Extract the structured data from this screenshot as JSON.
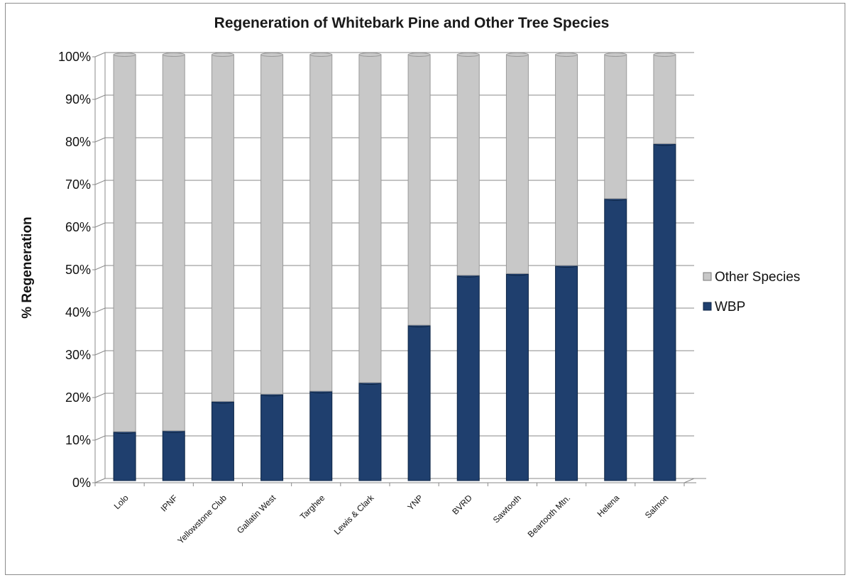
{
  "chart_data": {
    "type": "bar",
    "stacked": true,
    "title": "Regeneration of Whitebark Pine and Other Tree Species",
    "xlabel": "",
    "ylabel": "% Regeneration",
    "ylim": [
      0,
      100
    ],
    "y_ticks": [
      "0%",
      "10%",
      "20%",
      "30%",
      "40%",
      "50%",
      "60%",
      "70%",
      "80%",
      "90%",
      "100%"
    ],
    "grid": true,
    "legend_position": "right",
    "categories": [
      "Lolo",
      "IPNF",
      "Yellowstone Club",
      "Gallatin West",
      "Targhee",
      "Lewis & Clark",
      "YNP",
      "BVRD",
      "Sawtooth",
      "Beartooth Mtn.",
      "Helena",
      "Salmon"
    ],
    "series": [
      {
        "name": "WBP",
        "color": "#1f3f6e",
        "values": [
          11.5,
          11.7,
          18.6,
          20.3,
          21.0,
          23.0,
          36.5,
          48.2,
          48.6,
          50.5,
          66.2,
          79.1
        ]
      },
      {
        "name": "Other Species",
        "color": "#c8c8c8",
        "values": [
          88.5,
          88.3,
          81.4,
          79.7,
          79.0,
          77.0,
          63.5,
          51.8,
          51.4,
          49.5,
          33.8,
          20.9
        ]
      }
    ],
    "legend_order": [
      "Other Species",
      "WBP"
    ]
  }
}
